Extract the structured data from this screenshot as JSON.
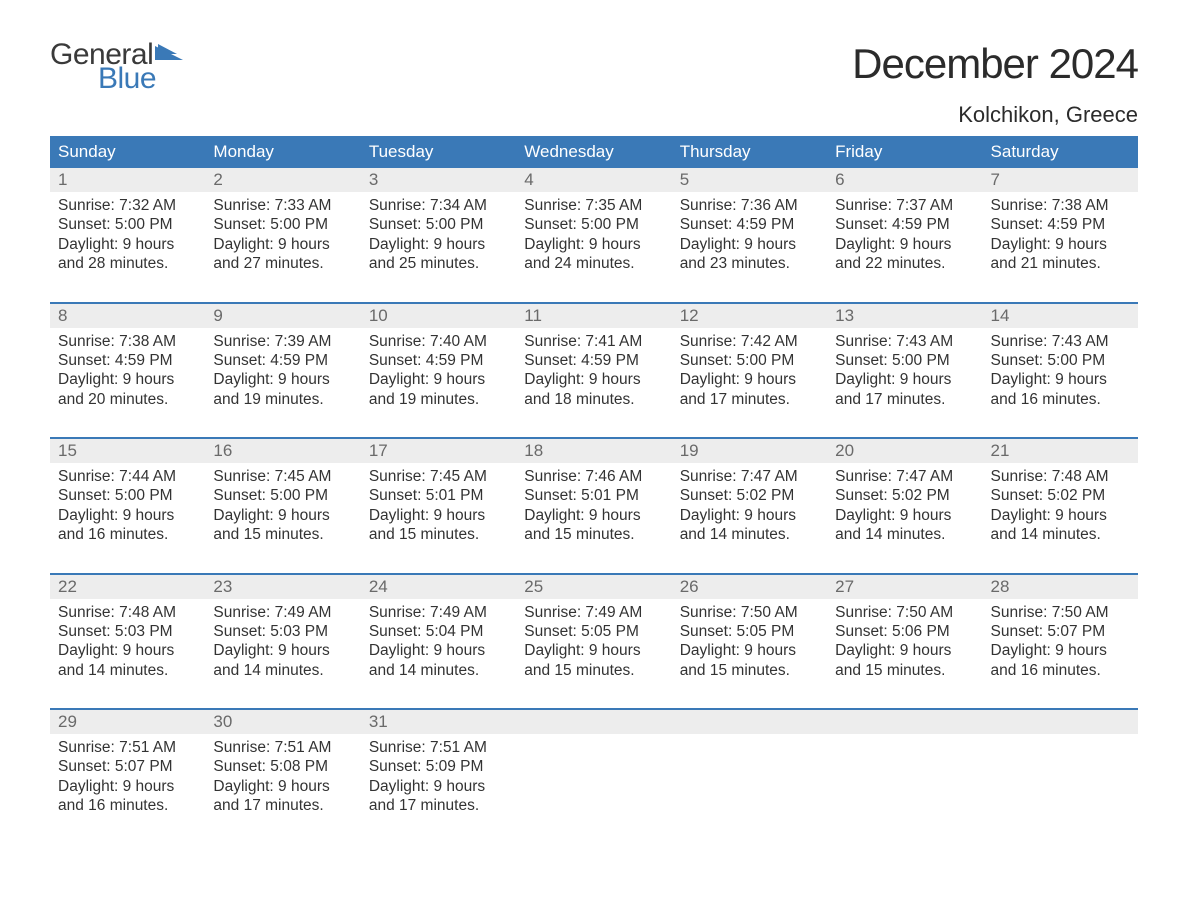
{
  "logo": {
    "text1": "General",
    "text2": "Blue",
    "flag_color": "#3a79b7"
  },
  "title": "December 2024",
  "location": "Kolchikon, Greece",
  "colors": {
    "header_bg": "#3a79b7",
    "header_text": "#ffffff",
    "daynum_bg": "#ededed",
    "daynum_text": "#6a6a6a",
    "body_text": "#333333",
    "page_bg": "#ffffff",
    "separator": "#3a79b7"
  },
  "day_headers": [
    "Sunday",
    "Monday",
    "Tuesday",
    "Wednesday",
    "Thursday",
    "Friday",
    "Saturday"
  ],
  "weeks": [
    [
      {
        "num": "1",
        "sunrise": "7:32 AM",
        "sunset": "5:00 PM",
        "daylight": "9 hours and 28 minutes."
      },
      {
        "num": "2",
        "sunrise": "7:33 AM",
        "sunset": "5:00 PM",
        "daylight": "9 hours and 27 minutes."
      },
      {
        "num": "3",
        "sunrise": "7:34 AM",
        "sunset": "5:00 PM",
        "daylight": "9 hours and 25 minutes."
      },
      {
        "num": "4",
        "sunrise": "7:35 AM",
        "sunset": "5:00 PM",
        "daylight": "9 hours and 24 minutes."
      },
      {
        "num": "5",
        "sunrise": "7:36 AM",
        "sunset": "4:59 PM",
        "daylight": "9 hours and 23 minutes."
      },
      {
        "num": "6",
        "sunrise": "7:37 AM",
        "sunset": "4:59 PM",
        "daylight": "9 hours and 22 minutes."
      },
      {
        "num": "7",
        "sunrise": "7:38 AM",
        "sunset": "4:59 PM",
        "daylight": "9 hours and 21 minutes."
      }
    ],
    [
      {
        "num": "8",
        "sunrise": "7:38 AM",
        "sunset": "4:59 PM",
        "daylight": "9 hours and 20 minutes."
      },
      {
        "num": "9",
        "sunrise": "7:39 AM",
        "sunset": "4:59 PM",
        "daylight": "9 hours and 19 minutes."
      },
      {
        "num": "10",
        "sunrise": "7:40 AM",
        "sunset": "4:59 PM",
        "daylight": "9 hours and 19 minutes."
      },
      {
        "num": "11",
        "sunrise": "7:41 AM",
        "sunset": "4:59 PM",
        "daylight": "9 hours and 18 minutes."
      },
      {
        "num": "12",
        "sunrise": "7:42 AM",
        "sunset": "5:00 PM",
        "daylight": "9 hours and 17 minutes."
      },
      {
        "num": "13",
        "sunrise": "7:43 AM",
        "sunset": "5:00 PM",
        "daylight": "9 hours and 17 minutes."
      },
      {
        "num": "14",
        "sunrise": "7:43 AM",
        "sunset": "5:00 PM",
        "daylight": "9 hours and 16 minutes."
      }
    ],
    [
      {
        "num": "15",
        "sunrise": "7:44 AM",
        "sunset": "5:00 PM",
        "daylight": "9 hours and 16 minutes."
      },
      {
        "num": "16",
        "sunrise": "7:45 AM",
        "sunset": "5:00 PM",
        "daylight": "9 hours and 15 minutes."
      },
      {
        "num": "17",
        "sunrise": "7:45 AM",
        "sunset": "5:01 PM",
        "daylight": "9 hours and 15 minutes."
      },
      {
        "num": "18",
        "sunrise": "7:46 AM",
        "sunset": "5:01 PM",
        "daylight": "9 hours and 15 minutes."
      },
      {
        "num": "19",
        "sunrise": "7:47 AM",
        "sunset": "5:02 PM",
        "daylight": "9 hours and 14 minutes."
      },
      {
        "num": "20",
        "sunrise": "7:47 AM",
        "sunset": "5:02 PM",
        "daylight": "9 hours and 14 minutes."
      },
      {
        "num": "21",
        "sunrise": "7:48 AM",
        "sunset": "5:02 PM",
        "daylight": "9 hours and 14 minutes."
      }
    ],
    [
      {
        "num": "22",
        "sunrise": "7:48 AM",
        "sunset": "5:03 PM",
        "daylight": "9 hours and 14 minutes."
      },
      {
        "num": "23",
        "sunrise": "7:49 AM",
        "sunset": "5:03 PM",
        "daylight": "9 hours and 14 minutes."
      },
      {
        "num": "24",
        "sunrise": "7:49 AM",
        "sunset": "5:04 PM",
        "daylight": "9 hours and 14 minutes."
      },
      {
        "num": "25",
        "sunrise": "7:49 AM",
        "sunset": "5:05 PM",
        "daylight": "9 hours and 15 minutes."
      },
      {
        "num": "26",
        "sunrise": "7:50 AM",
        "sunset": "5:05 PM",
        "daylight": "9 hours and 15 minutes."
      },
      {
        "num": "27",
        "sunrise": "7:50 AM",
        "sunset": "5:06 PM",
        "daylight": "9 hours and 15 minutes."
      },
      {
        "num": "28",
        "sunrise": "7:50 AM",
        "sunset": "5:07 PM",
        "daylight": "9 hours and 16 minutes."
      }
    ],
    [
      {
        "num": "29",
        "sunrise": "7:51 AM",
        "sunset": "5:07 PM",
        "daylight": "9 hours and 16 minutes."
      },
      {
        "num": "30",
        "sunrise": "7:51 AM",
        "sunset": "5:08 PM",
        "daylight": "9 hours and 17 minutes."
      },
      {
        "num": "31",
        "sunrise": "7:51 AM",
        "sunset": "5:09 PM",
        "daylight": "9 hours and 17 minutes."
      },
      null,
      null,
      null,
      null
    ]
  ],
  "labels": {
    "sunrise": "Sunrise:",
    "sunset": "Sunset:",
    "daylight": "Daylight:"
  }
}
